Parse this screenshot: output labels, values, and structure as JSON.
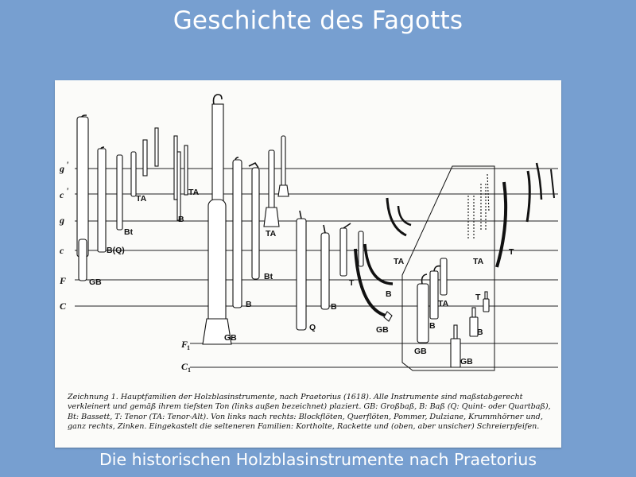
{
  "slide": {
    "title": "Geschichte des Fagotts",
    "subtitle": "Die historischen Holzblasinstrumente nach Praetorius"
  },
  "figure": {
    "pitch_labels": {
      "g2": "g",
      "g2_mark": "'",
      "c1": "c",
      "c1_mark": "'",
      "g": "g",
      "c": "c",
      "F": "F",
      "C": "C",
      "F1": "F",
      "F1_sub": "1",
      "C1": "C",
      "C1_sub": "1"
    },
    "instrument_labels": {
      "recorder_gb": "GB",
      "recorder_bq": "B(Q)",
      "recorder_bt": "Bt",
      "recorder_ta": "TA",
      "flute_ta": "TA",
      "flute_b": "B",
      "pommer_gb": "GB",
      "pommer_b": "B",
      "pommer_bt": "Bt",
      "pommer_ta": "TA",
      "dulzian_q": "Q",
      "dulzian_b": "B",
      "dulzian_t": "T",
      "krumm_gb": "GB",
      "krumm_b": "B",
      "krumm_ta": "TA",
      "kortholt_gb": "GB",
      "kortholt_b": "B",
      "kortholt_ta": "TA",
      "rackett_gb": "GB",
      "rackett_b": "B",
      "rackett_t": "T",
      "schreier_ta": "TA",
      "zink_t": "T"
    },
    "caption": "Zeichnung 1. Hauptfamilien der Holzblasinstrumente, nach Praetorius (1618). Alle Instrumente sind maßstabgerecht verkleinert und gemäß ihrem tiefsten Ton (links außen bezeichnet) plaziert. GB: Großbaß, B: Baß (Q: Quint- oder Quartbaß), Bt: Bassett, T: Tenor (TA: Tenor-Alt). Von links nach rechts: Blockflöten, Querflöten, Pommer, Dulziane, Krummhörner und, ganz rechts, Zinken. Eingekastelt die selteneren Familien: Kortholte, Rackette und (oben, aber unsicher) Schreierpfeifen."
  }
}
